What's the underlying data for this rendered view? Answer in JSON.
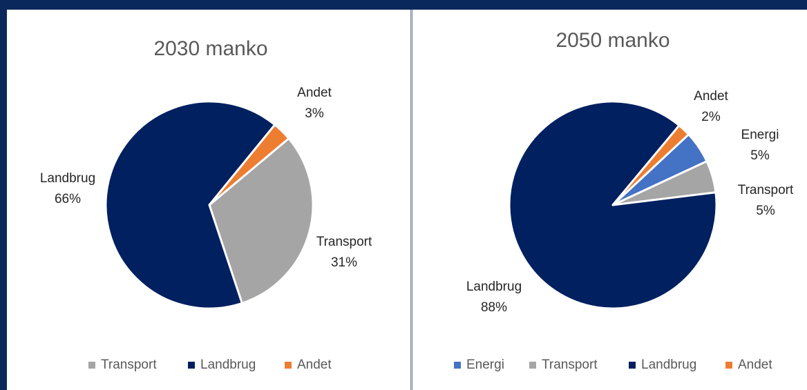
{
  "chart_data": [
    {
      "type": "pie",
      "title": "2030 manko",
      "categories": [
        "Transport",
        "Landbrug",
        "Andet"
      ],
      "values": [
        31,
        66,
        3
      ],
      "value_labels": [
        "31%",
        "66%",
        "3%"
      ],
      "colors": [
        "#a5a5a5",
        "#002060",
        "#ed7d31"
      ],
      "legend": "bottom"
    },
    {
      "type": "pie",
      "title": "2050 manko",
      "categories": [
        "Energi",
        "Transport",
        "Landbrug",
        "Andet"
      ],
      "values": [
        5,
        5,
        88,
        2
      ],
      "value_labels": [
        "5%",
        "5%",
        "88%",
        "2%"
      ],
      "colors": [
        "#4472c4",
        "#a5a5a5",
        "#002060",
        "#ed7d31"
      ],
      "legend": "bottom"
    }
  ]
}
